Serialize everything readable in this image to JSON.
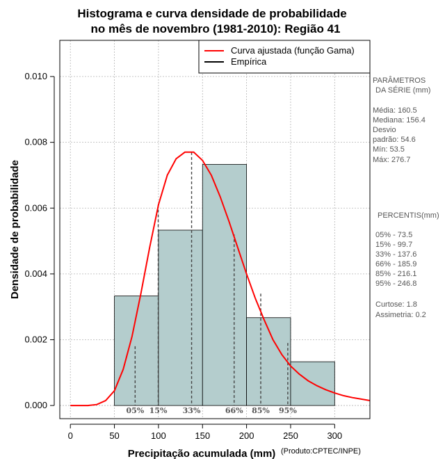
{
  "chart_data": {
    "type": "histogram",
    "title_line1": "Histograma e curva densidade de probabilidade",
    "title_line2": "no mês de novembro (1981-2010): Região 41",
    "xlabel": "Precipitação acumulada (mm)",
    "ylabel": "Densidade de probabilidade",
    "credit": "(Produto:CPTEC/INPE)",
    "xlim": [
      -12,
      340
    ],
    "ylim": [
      -0.0004,
      0.0111
    ],
    "xticks": [
      0,
      50,
      100,
      150,
      200,
      250,
      300
    ],
    "yticks": [
      0.0,
      0.002,
      0.004,
      0.006,
      0.008,
      0.01
    ],
    "ytick_labels": [
      "0.000",
      "0.002",
      "0.004",
      "0.006",
      "0.008",
      "0.010"
    ],
    "grid": true,
    "bar_color": "#b4cdcd",
    "curve_color": "#ff0000",
    "bins": [
      {
        "x0": 50,
        "x1": 100,
        "density": 0.00333
      },
      {
        "x0": 100,
        "x1": 150,
        "density": 0.00533
      },
      {
        "x0": 150,
        "x1": 200,
        "density": 0.00733
      },
      {
        "x0": 200,
        "x1": 250,
        "density": 0.00267
      },
      {
        "x0": 250,
        "x1": 300,
        "density": 0.00133
      }
    ],
    "gamma_curve": [
      [
        0,
        0.0
      ],
      [
        20,
        0.0
      ],
      [
        30,
        3e-05
      ],
      [
        40,
        0.00015
      ],
      [
        50,
        0.00045
      ],
      [
        60,
        0.0011
      ],
      [
        70,
        0.0021
      ],
      [
        80,
        0.0034
      ],
      [
        90,
        0.0048
      ],
      [
        100,
        0.0061
      ],
      [
        110,
        0.007
      ],
      [
        120,
        0.0075
      ],
      [
        130,
        0.0077
      ],
      [
        140,
        0.0077
      ],
      [
        150,
        0.00745
      ],
      [
        160,
        0.007
      ],
      [
        170,
        0.00635
      ],
      [
        180,
        0.0056
      ],
      [
        190,
        0.0048
      ],
      [
        200,
        0.004
      ],
      [
        210,
        0.00325
      ],
      [
        220,
        0.0026
      ],
      [
        230,
        0.002
      ],
      [
        240,
        0.00155
      ],
      [
        250,
        0.0012
      ],
      [
        260,
        0.00095
      ],
      [
        270,
        0.00075
      ],
      [
        280,
        0.0006
      ],
      [
        290,
        0.00048
      ],
      [
        300,
        0.00038
      ],
      [
        310,
        0.0003
      ],
      [
        320,
        0.00024
      ],
      [
        340,
        0.00015
      ]
    ],
    "percentile_marks": [
      {
        "label": "05%",
        "x": 73.5,
        "y": 0.0018
      },
      {
        "label": "15%",
        "x": 99.7,
        "y": 0.0061
      },
      {
        "label": "33%",
        "x": 137.6,
        "y": 0.0077
      },
      {
        "label": "66%",
        "x": 185.9,
        "y": 0.0052
      },
      {
        "label": "85%",
        "x": 216.1,
        "y": 0.0034
      },
      {
        "label": "95%",
        "x": 246.8,
        "y": 0.0019
      }
    ],
    "legend": [
      {
        "label": "Curva ajustada (função Gama)",
        "color": "#ff0000"
      },
      {
        "label": "Empírica",
        "color": "#000000"
      }
    ],
    "legend_position": "top-right"
  },
  "sidebar": {
    "params_title_1": "PARÂMETROS",
    "params_title_2": "DA SÉRIE (mm)",
    "params": [
      "Média:  160.5",
      "Mediana:  156.4",
      "Desvio",
      "padrão:  54.6",
      "Mín:  53.5",
      "Máx:  276.7"
    ],
    "percentis_title": "PERCENTIS(mm)",
    "percentis": [
      "05% -  73.5",
      "15% -  99.7",
      "33% -  137.6",
      "66% -  185.9",
      "85% -  216.1",
      "95% -  246.8"
    ],
    "stats": [
      "Curtose:  1.8",
      "Assimetria:  0.2"
    ]
  }
}
